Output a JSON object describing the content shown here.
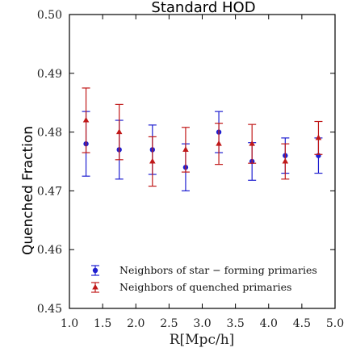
{
  "chart_data": {
    "type": "scatter",
    "title": "Standard HOD",
    "xlabel": "R[Mpc/h]",
    "ylabel": "Quenched Fraction",
    "xlim": [
      1.0,
      5.0
    ],
    "ylim": [
      0.45,
      0.5
    ],
    "xticks": [
      "1.0",
      "1.5",
      "2.0",
      "2.5",
      "3.0",
      "3.5",
      "4.0",
      "4.5",
      "5.0"
    ],
    "yticks": [
      "0.45",
      "0.46",
      "0.47",
      "0.48",
      "0.49",
      "0.50"
    ],
    "grid": false,
    "legend_position": "lower-center",
    "series": [
      {
        "name": "Neighbors of star − forming primaries",
        "color": "#1f1fd0",
        "marker": "circle",
        "x": [
          1.25,
          1.75,
          2.25,
          2.75,
          3.25,
          3.75,
          4.25,
          4.75
        ],
        "y": [
          0.478,
          0.477,
          0.477,
          0.474,
          0.48,
          0.475,
          0.476,
          0.476
        ],
        "err": [
          0.0055,
          0.005,
          0.0042,
          0.004,
          0.0035,
          0.0032,
          0.003,
          0.003
        ]
      },
      {
        "name": "Neighbors of quenched primaries",
        "color": "#c01818",
        "marker": "triangle",
        "x": [
          1.25,
          1.75,
          2.25,
          2.75,
          3.25,
          3.75,
          4.25,
          4.75
        ],
        "y": [
          0.482,
          0.48,
          0.475,
          0.477,
          0.478,
          0.478,
          0.475,
          0.479
        ],
        "err": [
          0.0055,
          0.0047,
          0.0042,
          0.0038,
          0.0035,
          0.0033,
          0.003,
          0.0028
        ]
      }
    ]
  }
}
